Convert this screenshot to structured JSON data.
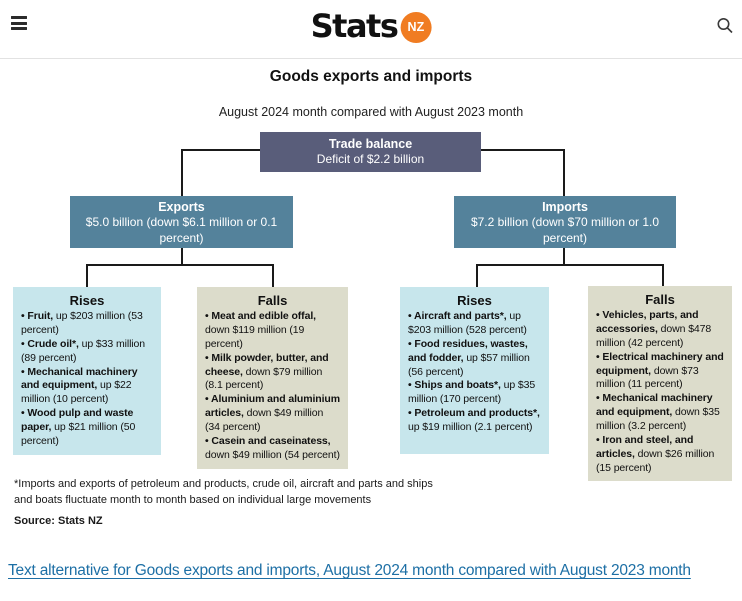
{
  "header": {
    "logo_text": "Stats",
    "logo_badge": "NZ",
    "icons": {
      "menu": "hamburger-icon",
      "search": "search-icon"
    }
  },
  "diagram": {
    "title": "Goods exports and imports",
    "subtitle": "August 2024 month compared with August 2023 month",
    "trade_balance": {
      "label": "Trade balance",
      "value": "Deficit of $2.2 billion"
    },
    "exports": {
      "label": "Exports",
      "value": "$5.0 billion (down $6.1 million or 0.1 percent)",
      "rises": {
        "title": "Rises",
        "items": [
          {
            "name": "Fruit,",
            "detail": "up $203 million (53 percent)"
          },
          {
            "name": "Crude oil*,",
            "detail": "up $33 million (89 percent)"
          },
          {
            "name": "Mechanical machinery and equipment,",
            "detail": "up $22 million (10 percent)"
          },
          {
            "name": "Wood pulp and waste paper,",
            "detail": "up $21 million (50 percent)"
          }
        ]
      },
      "falls": {
        "title": "Falls",
        "items": [
          {
            "name": "Meat and edible offal,",
            "detail": "down $119 million (19 percent)"
          },
          {
            "name": "Milk powder, butter, and cheese,",
            "detail": "down $79 million (8.1 percent)"
          },
          {
            "name": "Aluminium and aluminium articles,",
            "detail": "down $49 million (34 percent)"
          },
          {
            "name": "Casein and caseinatess,",
            "detail": "down $49 million (54 percent)"
          }
        ]
      }
    },
    "imports": {
      "label": "Imports",
      "value": "$7.2 billion (down $70 million or 1.0 percent)",
      "rises": {
        "title": "Rises",
        "items": [
          {
            "name": "Aircraft and parts*,",
            "detail": "up $203 million (528 percent)"
          },
          {
            "name": "Food residues, wastes, and fodder,",
            "detail": "up $57 million (56 percent)"
          },
          {
            "name": "Ships and boats*,",
            "detail": "up $35 million (170 percent)"
          },
          {
            "name": "Petroleum and products*,",
            "detail": "up $19 million (2.1 percent)"
          }
        ]
      },
      "falls": {
        "title": "Falls",
        "items": [
          {
            "name": "Vehicles, parts, and accessories,",
            "detail": "down $478 million (42 percent)"
          },
          {
            "name": "Electrical machinery and equipment,",
            "detail": "down $73 million (11 percent)"
          },
          {
            "name": "Mechanical machinery and equipment,",
            "detail": "down $35 million (3.2 percent)"
          },
          {
            "name": "Iron and steel, and articles,",
            "detail": "down $26 million (15 percent)"
          }
        ]
      }
    },
    "footnote": "*Imports and exports of petroleum and products, crude oil, aircraft and parts and ships and boats fluctuate month to month based on individual large movements",
    "source": "Source: Stats NZ"
  },
  "link": {
    "text": "Text alternative for Goods exports and imports, August 2024 month compared with August 2023 month"
  },
  "colors": {
    "brand-orange": "#f07c22",
    "trade-box": "#595d7a",
    "flow-box": "#54829b",
    "rises-box": "#c7e6ec",
    "falls-box": "#dcdccb",
    "link-blue": "#1d6fa5",
    "line": "#1a1a1a"
  }
}
